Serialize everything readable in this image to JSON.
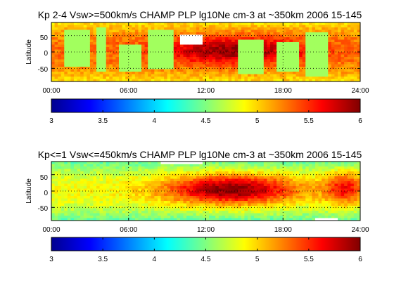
{
  "chart_data": [
    {
      "type": "heatmap",
      "title": "Kp 2-4 Vsw>=500km/s CHAMP PLP lg10Ne cm-3 at ~350km 2006 15-145",
      "xlabel": "",
      "ylabel": "Latitude",
      "xlim": [
        0,
        24
      ],
      "ylim": [
        -90,
        90
      ],
      "x_ticks": [
        "00:00",
        "06:00",
        "12:00",
        "18:00",
        "24:00"
      ],
      "y_ticks": [
        "50",
        "0",
        "-50"
      ],
      "grid": true,
      "colorbar": {
        "range": [
          3,
          6
        ],
        "ticks": [
          "3",
          "3.5",
          "4",
          "4.5",
          "5",
          "5.5",
          "6"
        ],
        "colormap": "jet"
      },
      "field": {
        "base": 5.3,
        "ridges": [
          {
            "center_hour": 14.2,
            "center_lat": 5,
            "peak": 5.95,
            "width_hour": 5.5,
            "width_lat": 40
          }
        ],
        "edge_fade": 0.35
      },
      "data_gaps_value": 4.6,
      "data_gaps": [
        {
          "t0": 1.1,
          "t1": 2.9,
          "lat0": -45,
          "lat1": 70
        },
        {
          "t0": 3.5,
          "t1": 4.2,
          "lat0": -60,
          "lat1": 75
        },
        {
          "t0": 5.2,
          "t1": 7.0,
          "lat0": -60,
          "lat1": 20
        },
        {
          "t0": 7.6,
          "t1": 9.6,
          "lat0": -50,
          "lat1": 70
        },
        {
          "t0": 14.6,
          "t1": 16.4,
          "lat0": -70,
          "lat1": 35
        },
        {
          "t0": 17.4,
          "t1": 19.3,
          "lat0": -60,
          "lat1": 30
        },
        {
          "t0": 19.8,
          "t1": 21.6,
          "lat0": -75,
          "lat1": 60
        },
        {
          "t0": 10.1,
          "t1": 11.8,
          "lat0": 20,
          "lat1": 55,
          "value": 9
        }
      ]
    },
    {
      "type": "heatmap",
      "title": "Kp<=1 Vsw<=450km/s CHAMP PLP lg10Ne cm-3 at ~350km 2006 15-145",
      "xlabel": "",
      "ylabel": "Latitude",
      "xlim": [
        0,
        24
      ],
      "ylim": [
        -90,
        90
      ],
      "x_ticks": [
        "00:00",
        "06:00",
        "12:00",
        "18:00",
        "24:00"
      ],
      "y_ticks": [
        "50",
        "0",
        "-50"
      ],
      "grid": true,
      "colorbar": {
        "range": [
          3,
          6
        ],
        "ticks": [
          "3",
          "3.5",
          "4",
          "4.5",
          "5",
          "5.5",
          "6"
        ],
        "colormap": "jet"
      },
      "field": {
        "base": 4.85,
        "ridges": [
          {
            "center_hour": 14.0,
            "center_lat": 5,
            "peak": 6.0,
            "width_hour": 5.0,
            "width_lat": 45
          },
          {
            "center_hour": 22.8,
            "center_lat": 10,
            "peak": 5.6,
            "width_hour": 1.5,
            "width_lat": 50
          }
        ],
        "edge_fade": 0.45
      },
      "data_gaps_value": 9,
      "data_gaps": [
        {
          "t0": 8.5,
          "t1": 11.8,
          "lat0": 80,
          "lat1": 90
        },
        {
          "t0": 20.5,
          "t1": 22.3,
          "lat0": -90,
          "lat1": -80
        }
      ]
    }
  ]
}
